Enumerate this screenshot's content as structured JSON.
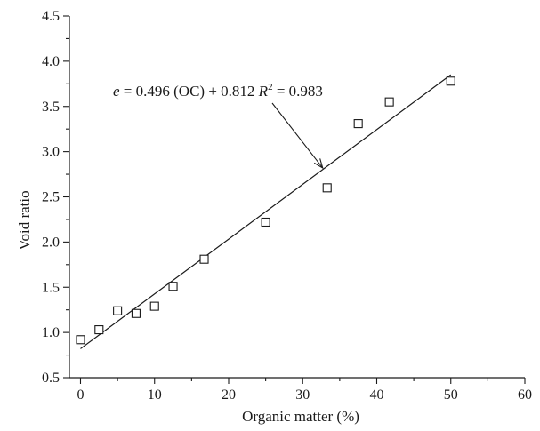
{
  "chart_data": {
    "type": "scatter",
    "xlabel": "Organic matter (%)",
    "ylabel": "Void ratio",
    "xlim": [
      -1.5,
      60
    ],
    "ylim": [
      0.5,
      4.5
    ],
    "xticks": [
      0,
      10,
      20,
      30,
      40,
      50,
      60
    ],
    "yticks": [
      0.5,
      1.0,
      1.5,
      2.0,
      2.5,
      3.0,
      3.5,
      4.0,
      4.5
    ],
    "xtick_labels": [
      "0",
      "10",
      "20",
      "30",
      "40",
      "50",
      "60"
    ],
    "ytick_labels": [
      "0.5",
      "1.0",
      "1.5",
      "2.0",
      "2.5",
      "3.0",
      "3.5",
      "4.0",
      "4.5"
    ],
    "grid": false,
    "marker": "open-square",
    "series": [
      {
        "x": [
          0,
          2.5,
          5,
          7.5,
          10,
          12.5,
          16.7,
          25,
          33.3,
          37.5,
          41.7,
          50
        ],
        "y": [
          0.92,
          1.03,
          1.24,
          1.21,
          1.29,
          1.51,
          1.81,
          2.22,
          2.6,
          3.31,
          3.55,
          3.78
        ]
      }
    ],
    "fit_line": {
      "slope": 0.0606,
      "intercept": 0.82,
      "x_range": [
        0,
        50
      ]
    },
    "annotation": {
      "e": "e",
      "mid": " = 0.496 (OC) + 0.812 ",
      "R": "R",
      "sup": "2",
      "tail": " = 0.983",
      "points_to": {
        "x": 32.7,
        "y": 2.82
      }
    }
  }
}
